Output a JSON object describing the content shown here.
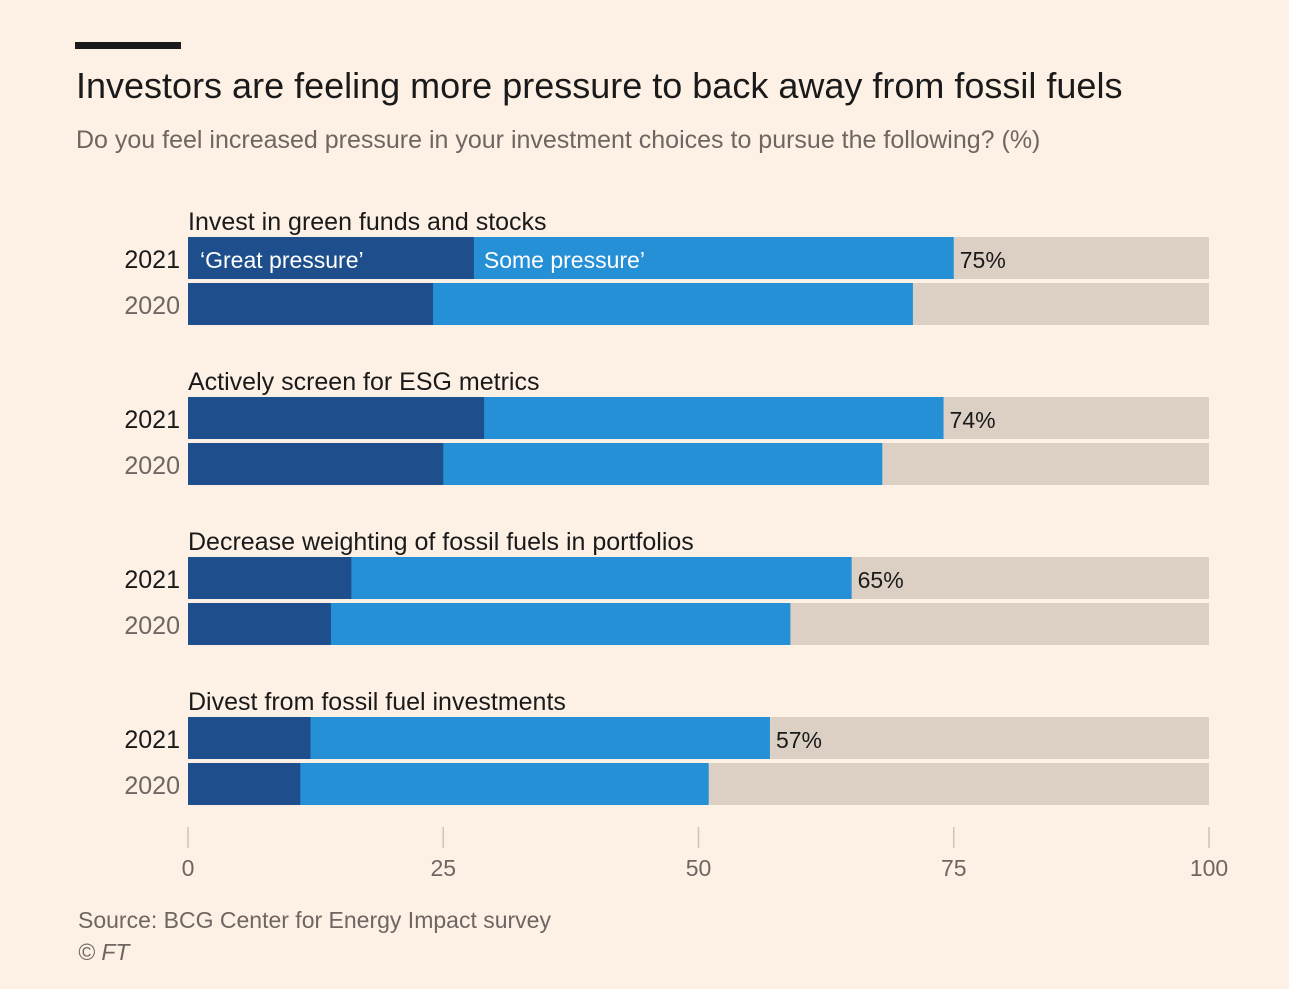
{
  "header": {
    "title": "Investors are feeling more pressure to back away from fossil fuels",
    "subtitle": "Do you feel increased pressure in your investment choices to pursue the following? (%)"
  },
  "footer": {
    "source": "Source: BCG Center for Energy Impact survey",
    "copyright": "© FT"
  },
  "colors": {
    "background": "#fdf1e6",
    "great_pressure": "#1e4f8c",
    "some_pressure": "#2590d6",
    "remainder": "#dccfc4",
    "text": "#1a1a1a",
    "muted_text": "#6e6661"
  },
  "chart_data": {
    "type": "bar",
    "orientation": "horizontal",
    "stacked": true,
    "title": "Investors are feeling more pressure to back away from fossil fuels",
    "subtitle": "Do you feel increased pressure in your investment choices to pursue the following? (%)",
    "xlim": [
      0,
      100
    ],
    "xticks": [
      0,
      25,
      50,
      75,
      100
    ],
    "series_labels": [
      "‘Great pressure’",
      "Some pressure’"
    ],
    "groups": [
      {
        "label": "Invest in green funds and stocks",
        "rows": [
          {
            "year": "2021",
            "great": 28,
            "total": 75,
            "value_label": "75%"
          },
          {
            "year": "2020",
            "great": 24,
            "total": 71,
            "value_label": ""
          }
        ]
      },
      {
        "label": "Actively screen for ESG metrics",
        "rows": [
          {
            "year": "2021",
            "great": 29,
            "total": 74,
            "value_label": "74%"
          },
          {
            "year": "2020",
            "great": 25,
            "total": 68,
            "value_label": ""
          }
        ]
      },
      {
        "label": "Decrease weighting of fossil fuels in portfolios",
        "rows": [
          {
            "year": "2021",
            "great": 16,
            "total": 65,
            "value_label": "65%"
          },
          {
            "year": "2020",
            "great": 14,
            "total": 59,
            "value_label": ""
          }
        ]
      },
      {
        "label": "Divest from fossil fuel investments",
        "rows": [
          {
            "year": "2021",
            "great": 12,
            "total": 57,
            "value_label": "57%"
          },
          {
            "year": "2020",
            "great": 11,
            "total": 51,
            "value_label": ""
          }
        ]
      }
    ]
  }
}
